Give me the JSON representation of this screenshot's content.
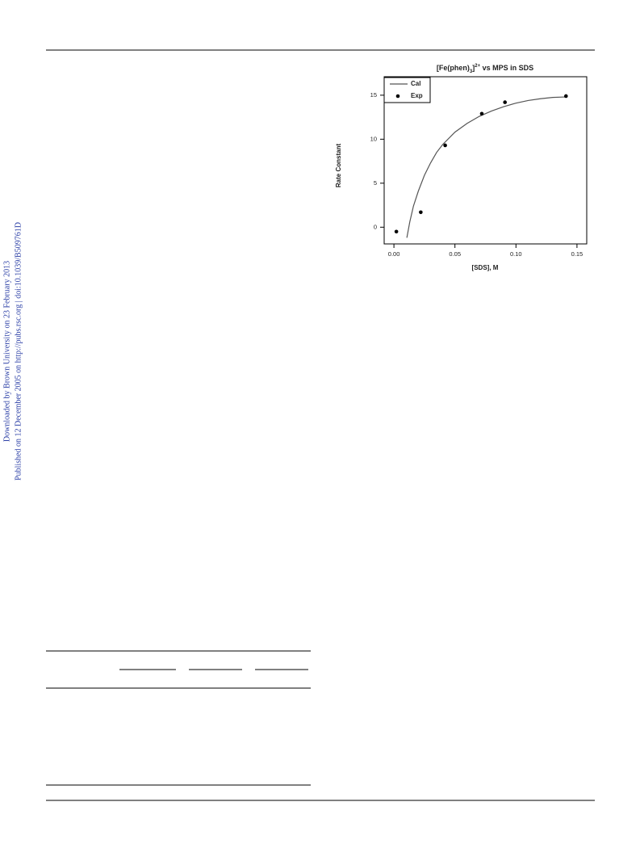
{
  "side_notes": [
    "Downloaded by Brown University on 23 February 2013",
    "Published on 12 December 2005 on http://pubs.rsc.org | doi:10.1039/B509761D"
  ],
  "chart_data": {
    "type": "scatter",
    "title": {
      "prefix": "[Fe(phen)",
      "sub": "3",
      "mid": "]",
      "sup": "2+",
      "suffix": " vs MPS in SDS"
    },
    "x_label": "[SDS], M",
    "y_label": "Rate Constant",
    "xlim": [
      -0.008,
      0.158
    ],
    "ylim": [
      -1.9,
      17.1
    ],
    "xticks": [
      {
        "value": 0,
        "label": "0.00"
      },
      {
        "value": 0.05,
        "label": "0.05"
      },
      {
        "value": 0.1,
        "label": "0.10"
      },
      {
        "value": 0.15,
        "label": "0.15"
      }
    ],
    "yticks": [
      0,
      5,
      10,
      15
    ],
    "legend": "top-left",
    "series": [
      {
        "name": "Cal",
        "color": "#555555",
        "mode": "line",
        "x": [
          0.0106,
          0.013,
          0.016,
          0.02,
          0.025,
          0.03,
          0.035,
          0.04,
          0.05,
          0.06,
          0.07,
          0.08,
          0.09,
          0.1,
          0.11,
          0.12,
          0.13,
          0.14
        ],
        "values": [
          -1.2,
          0.6,
          2.4,
          4.1,
          5.9,
          7.3,
          8.5,
          9.4,
          10.8,
          11.8,
          12.6,
          13.2,
          13.7,
          14.1,
          14.4,
          14.6,
          14.75,
          14.8
        ]
      },
      {
        "name": "Exp",
        "color": "#000000",
        "mode": "points",
        "x": [
          0.002,
          0.022,
          0.042,
          0.072,
          0.091,
          0.141
        ],
        "values": [
          -0.5,
          1.7,
          9.3,
          12.9,
          14.2,
          14.9
        ]
      }
    ]
  }
}
